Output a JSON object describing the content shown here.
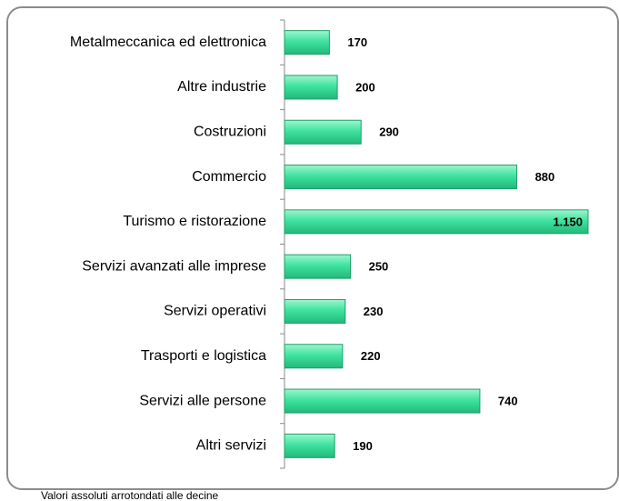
{
  "chart_data": {
    "type": "bar",
    "orientation": "horizontal",
    "categories": [
      "Metalmeccanica ed elettronica",
      "Altre industrie",
      "Costruzioni",
      "Commercio",
      "Turismo e ristorazione",
      "Servizi avanzati alle imprese",
      "Servizi operativi",
      "Trasporti e logistica",
      "Servizi alle persone",
      "Altri servizi"
    ],
    "values": [
      170,
      200,
      290,
      880,
      1150,
      250,
      230,
      220,
      740,
      190
    ],
    "value_labels": [
      "170",
      "200",
      "290",
      "880",
      "1.150",
      "250",
      "230",
      "220",
      "740",
      "190"
    ],
    "color": "#3fe3a0",
    "note": "Valori assoluti arrotondati alle decine"
  }
}
